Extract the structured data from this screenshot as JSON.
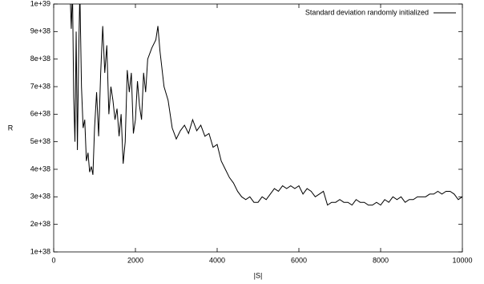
{
  "chart_data": {
    "type": "line",
    "xlabel": "|S|",
    "ylabel": "R",
    "x": [
      400,
      430,
      460,
      490,
      520,
      550,
      580,
      610,
      640,
      680,
      720,
      760,
      800,
      840,
      880,
      920,
      960,
      1000,
      1050,
      1100,
      1150,
      1200,
      1250,
      1300,
      1350,
      1400,
      1450,
      1500,
      1550,
      1600,
      1650,
      1700,
      1750,
      1800,
      1850,
      1900,
      1950,
      2000,
      2050,
      2100,
      2150,
      2200,
      2250,
      2300,
      2400,
      2500,
      2550,
      2600,
      2700,
      2800,
      2900,
      3000,
      3100,
      3200,
      3300,
      3400,
      3500,
      3600,
      3700,
      3800,
      3900,
      4000,
      4100,
      4200,
      4300,
      4400,
      4500,
      4600,
      4700,
      4800,
      4900,
      5000,
      5100,
      5200,
      5300,
      5400,
      5500,
      5600,
      5700,
      5800,
      5900,
      6000,
      6100,
      6200,
      6300,
      6400,
      6500,
      6600,
      6700,
      6800,
      6900,
      7000,
      7100,
      7200,
      7300,
      7400,
      7500,
      7600,
      7700,
      7800,
      7900,
      8000,
      8100,
      8200,
      8300,
      8400,
      8500,
      8600,
      8700,
      8800,
      8900,
      9000,
      9100,
      9200,
      9300,
      9400,
      9500,
      9600,
      9700,
      9800,
      9900,
      10000
    ],
    "series": [
      {
        "name": "Standard deviation randomly initialized",
        "color": "#000000",
        "values": [
          1.05e+39,
          9.1e+38,
          1.05e+39,
          6.6e+38,
          5e+38,
          9e+38,
          4.7e+38,
          8e+38,
          1.05e+39,
          7e+38,
          5.5e+38,
          5.8e+38,
          4.3e+38,
          4.6e+38,
          3.9e+38,
          4.1e+38,
          3.8e+38,
          5.5e+38,
          6.8e+38,
          5.2e+38,
          7.5e+38,
          9.2e+38,
          7.5e+38,
          8.5e+38,
          6e+38,
          7e+38,
          6.5e+38,
          5.8e+38,
          6.2e+38,
          5.2e+38,
          6e+38,
          4.2e+38,
          5e+38,
          7.6e+38,
          6.8e+38,
          7.5e+38,
          5.3e+38,
          5.8e+38,
          7.2e+38,
          6.3e+38,
          5.8e+38,
          7.5e+38,
          6.8e+38,
          8e+38,
          8.4e+38,
          8.7e+38,
          9.2e+38,
          8.3e+38,
          7e+38,
          6.5e+38,
          5.5e+38,
          5.1e+38,
          5.4e+38,
          5.6e+38,
          5.3e+38,
          5.8e+38,
          5.4e+38,
          5.6e+38,
          5.2e+38,
          5.3e+38,
          4.8e+38,
          4.9e+38,
          4.3e+38,
          4e+38,
          3.7e+38,
          3.5e+38,
          3.2e+38,
          3e+38,
          2.9e+38,
          3e+38,
          2.8e+38,
          2.8e+38,
          3e+38,
          2.9e+38,
          3.1e+38,
          3.3e+38,
          3.2e+38,
          3.4e+38,
          3.3e+38,
          3.4e+38,
          3.3e+38,
          3.4e+38,
          3.1e+38,
          3.3e+38,
          3.2e+38,
          3e+38,
          3.1e+38,
          3.2e+38,
          2.7e+38,
          2.8e+38,
          2.8e+38,
          2.9e+38,
          2.8e+38,
          2.8e+38,
          2.7e+38,
          2.9e+38,
          2.8e+38,
          2.8e+38,
          2.7e+38,
          2.7e+38,
          2.8e+38,
          2.7e+38,
          2.9e+38,
          2.8e+38,
          3e+38,
          2.9e+38,
          3e+38,
          2.8e+38,
          2.9e+38,
          2.9e+38,
          3e+38,
          3e+38,
          3e+38,
          3.1e+38,
          3.1e+38,
          3.2e+38,
          3.1e+38,
          3.2e+38,
          3.2e+38,
          3.1e+38,
          2.9e+38,
          3e+38
        ]
      }
    ],
    "xlim": [
      0,
      10000
    ],
    "xticks": [
      0,
      2000,
      4000,
      6000,
      8000,
      10000
    ],
    "ylim": [
      1e+38,
      1e+39
    ],
    "yticks": [
      {
        "value": 1e+38,
        "label": "1e+38"
      },
      {
        "value": 2e+38,
        "label": "2e+38"
      },
      {
        "value": 3e+38,
        "label": "3e+38"
      },
      {
        "value": 4e+38,
        "label": "4e+38"
      },
      {
        "value": 5e+38,
        "label": "5e+38"
      },
      {
        "value": 6e+38,
        "label": "6e+38"
      },
      {
        "value": 7e+38,
        "label": "7e+38"
      },
      {
        "value": 8e+38,
        "label": "8e+38"
      },
      {
        "value": 9e+38,
        "label": "9e+38"
      },
      {
        "value": 1e+39,
        "label": "1e+39"
      }
    ],
    "legend": "top-right"
  }
}
